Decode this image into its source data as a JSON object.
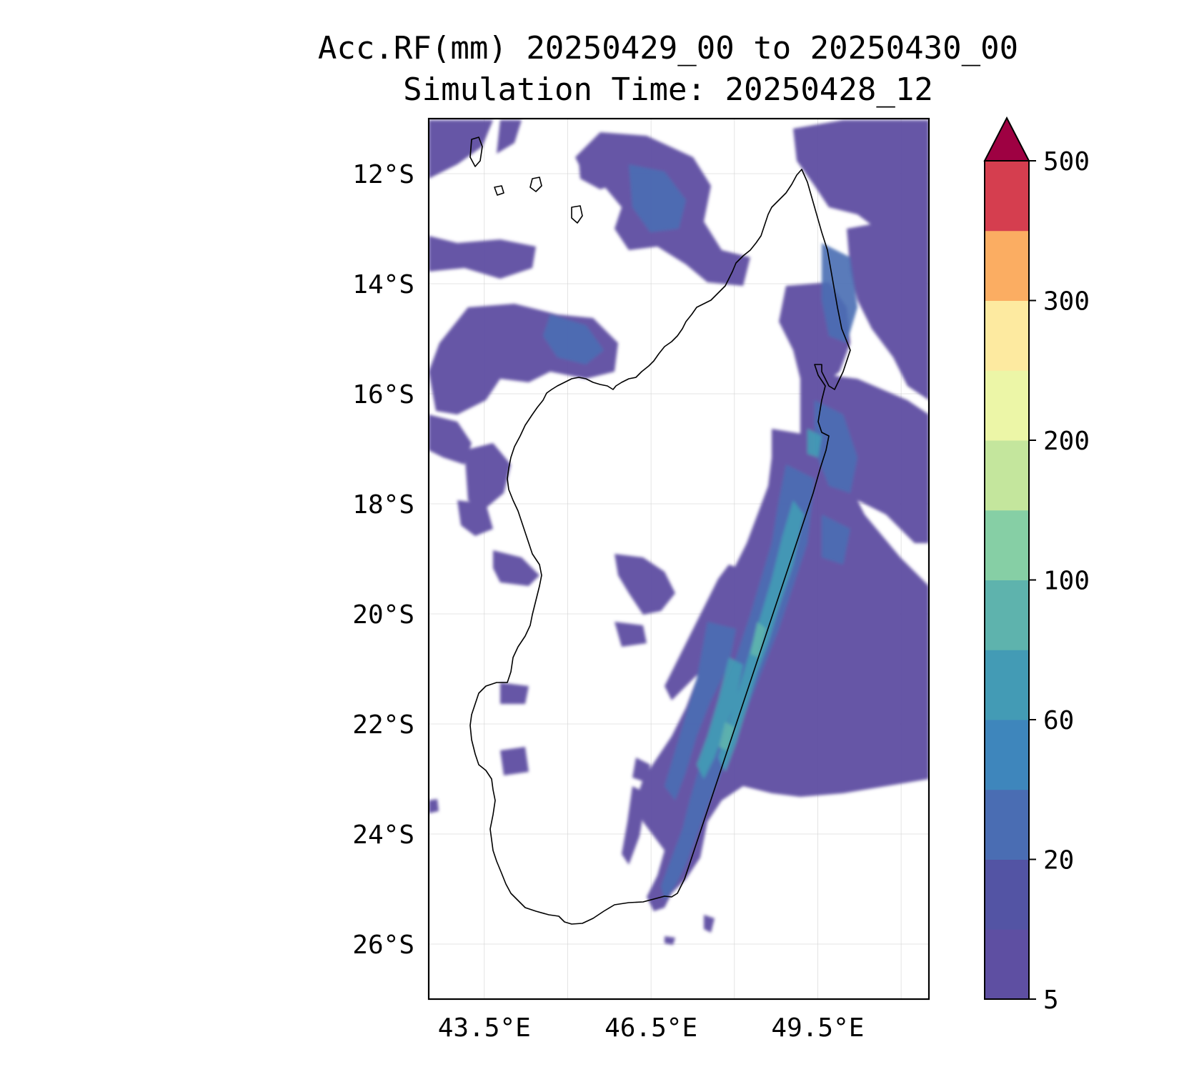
{
  "title": {
    "line1": "Acc.RF(mm) 20250429_00 to 20250430_00",
    "line2": "Simulation Time: 20250428_12"
  },
  "map": {
    "lon_range": [
      42.5,
      51.5
    ],
    "lat_range": [
      -27,
      -11
    ],
    "lat_ticks": [
      {
        "value": -12,
        "label": "12°S"
      },
      {
        "value": -14,
        "label": "14°S"
      },
      {
        "value": -16,
        "label": "16°S"
      },
      {
        "value": -18,
        "label": "18°S"
      },
      {
        "value": -20,
        "label": "20°S"
      },
      {
        "value": -22,
        "label": "22°S"
      },
      {
        "value": -24,
        "label": "24°S"
      },
      {
        "value": -26,
        "label": "26°S"
      }
    ],
    "lon_ticks": [
      {
        "value": 43.5,
        "label": "43.5°E"
      },
      {
        "value": 46.5,
        "label": "46.5°E"
      },
      {
        "value": 49.5,
        "label": "49.5°E"
      }
    ],
    "lon_gridlines": [
      43.5,
      45.0,
      46.5,
      48.0,
      49.5,
      51.0
    ],
    "gridlines": true,
    "region": "Madagascar"
  },
  "colorbar": {
    "extend": "max",
    "ticks": [
      {
        "value": 5,
        "label": "5"
      },
      {
        "value": 20,
        "label": "20"
      },
      {
        "value": 60,
        "label": "60"
      },
      {
        "value": 100,
        "label": "100"
      },
      {
        "value": 200,
        "label": "200"
      },
      {
        "value": 300,
        "label": "300"
      },
      {
        "value": 500,
        "label": "500"
      }
    ],
    "levels": [
      5,
      10,
      20,
      40,
      60,
      80,
      100,
      150,
      200,
      250,
      300,
      400,
      500
    ],
    "colors": [
      "#5e4fa2",
      "#5354a4",
      "#4a6db3",
      "#3e86bc",
      "#439bb5",
      "#5eb3ad",
      "#86cfa5",
      "#c4e69d",
      "#ecf6a7",
      "#fdeaa0",
      "#fbad62",
      "#d53e4f"
    ],
    "extend_color": "#9e0142"
  }
}
